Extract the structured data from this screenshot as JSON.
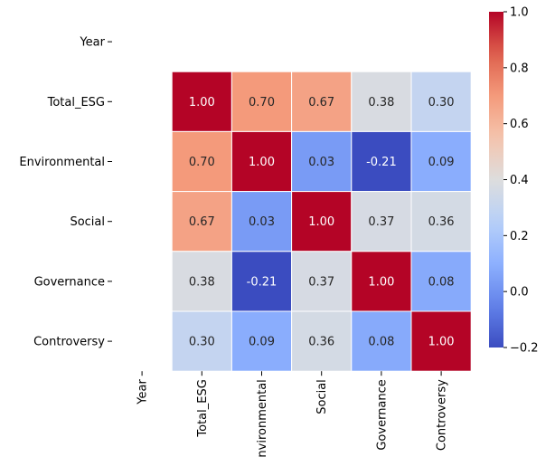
{
  "chart_data": {
    "type": "heatmap",
    "title": "",
    "xlabel": "",
    "ylabel": "",
    "rows": [
      "Year",
      "Total_ESG",
      "Environmental",
      "Social",
      "Governance",
      "Controversy"
    ],
    "columns": [
      "Year",
      "Total_ESG",
      "Environmental",
      "Social",
      "Governance",
      "Controversy"
    ],
    "values": [
      [
        null,
        null,
        null,
        null,
        null,
        null
      ],
      [
        null,
        1.0,
        0.7,
        0.67,
        0.38,
        0.3
      ],
      [
        null,
        0.7,
        1.0,
        0.03,
        -0.21,
        0.09
      ],
      [
        null,
        0.67,
        0.03,
        1.0,
        0.37,
        0.36
      ],
      [
        null,
        0.38,
        -0.21,
        0.37,
        1.0,
        0.08
      ],
      [
        null,
        0.3,
        0.09,
        0.36,
        0.08,
        1.0
      ]
    ],
    "value_labels": [
      [
        "",
        "",
        "",
        "",
        "",
        ""
      ],
      [
        "",
        "1.00",
        "0.70",
        "0.67",
        "0.38",
        "0.30"
      ],
      [
        "",
        "0.70",
        "1.00",
        "0.03",
        "-0.21",
        "0.09"
      ],
      [
        "",
        "0.67",
        "0.03",
        "1.00",
        "0.37",
        "0.36"
      ],
      [
        "",
        "0.38",
        "-0.21",
        "0.37",
        "1.00",
        "0.08"
      ],
      [
        "",
        "0.30",
        "0.09",
        "0.36",
        "0.08",
        "1.00"
      ]
    ],
    "colormap": "coolwarm",
    "vmin": -0.2,
    "vmax": 1.0,
    "colorbar_ticks": [
      -0.2,
      0.0,
      0.2,
      0.4,
      0.6,
      0.8,
      1.0
    ],
    "colorbar_tick_labels": [
      "−0.2",
      "0.0",
      "0.2",
      "0.4",
      "0.6",
      "0.8",
      "1.0"
    ],
    "grid": false
  }
}
